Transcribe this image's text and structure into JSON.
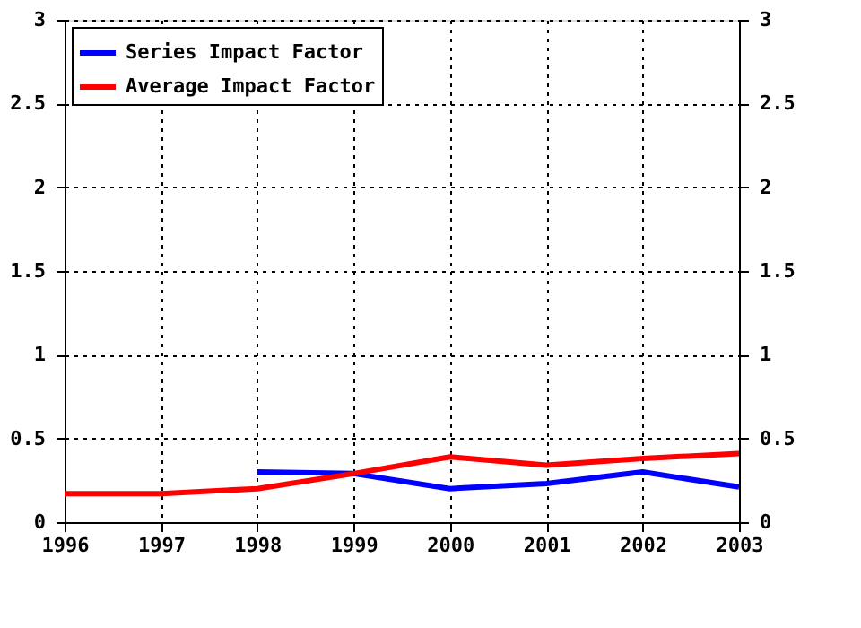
{
  "chart_data": {
    "type": "line",
    "x": [
      1996,
      1997,
      1998,
      1999,
      2000,
      2001,
      2002,
      2003
    ],
    "series": [
      {
        "name": "Series Impact Factor",
        "color": "#0000ff",
        "values": [
          null,
          null,
          0.3,
          0.29,
          0.2,
          0.23,
          0.3,
          0.21
        ]
      },
      {
        "name": "Average Impact Factor",
        "color": "#ff0000",
        "values": [
          0.17,
          0.17,
          0.2,
          0.29,
          0.39,
          0.34,
          0.38,
          0.41
        ]
      }
    ],
    "xlim": [
      1996,
      2003
    ],
    "xticks": [
      1996,
      1997,
      1998,
      1999,
      2000,
      2001,
      2002,
      2003
    ],
    "ylim": [
      0,
      3
    ],
    "yticks": [
      0,
      0.5,
      1,
      1.5,
      2,
      2.5,
      3
    ],
    "y2lim": [
      0,
      3
    ],
    "y2ticks": [
      0,
      0.5,
      1,
      1.5,
      2,
      2.5,
      3
    ],
    "grid": true,
    "legend": "top left",
    "marker": "none",
    "line_style": "solid"
  }
}
